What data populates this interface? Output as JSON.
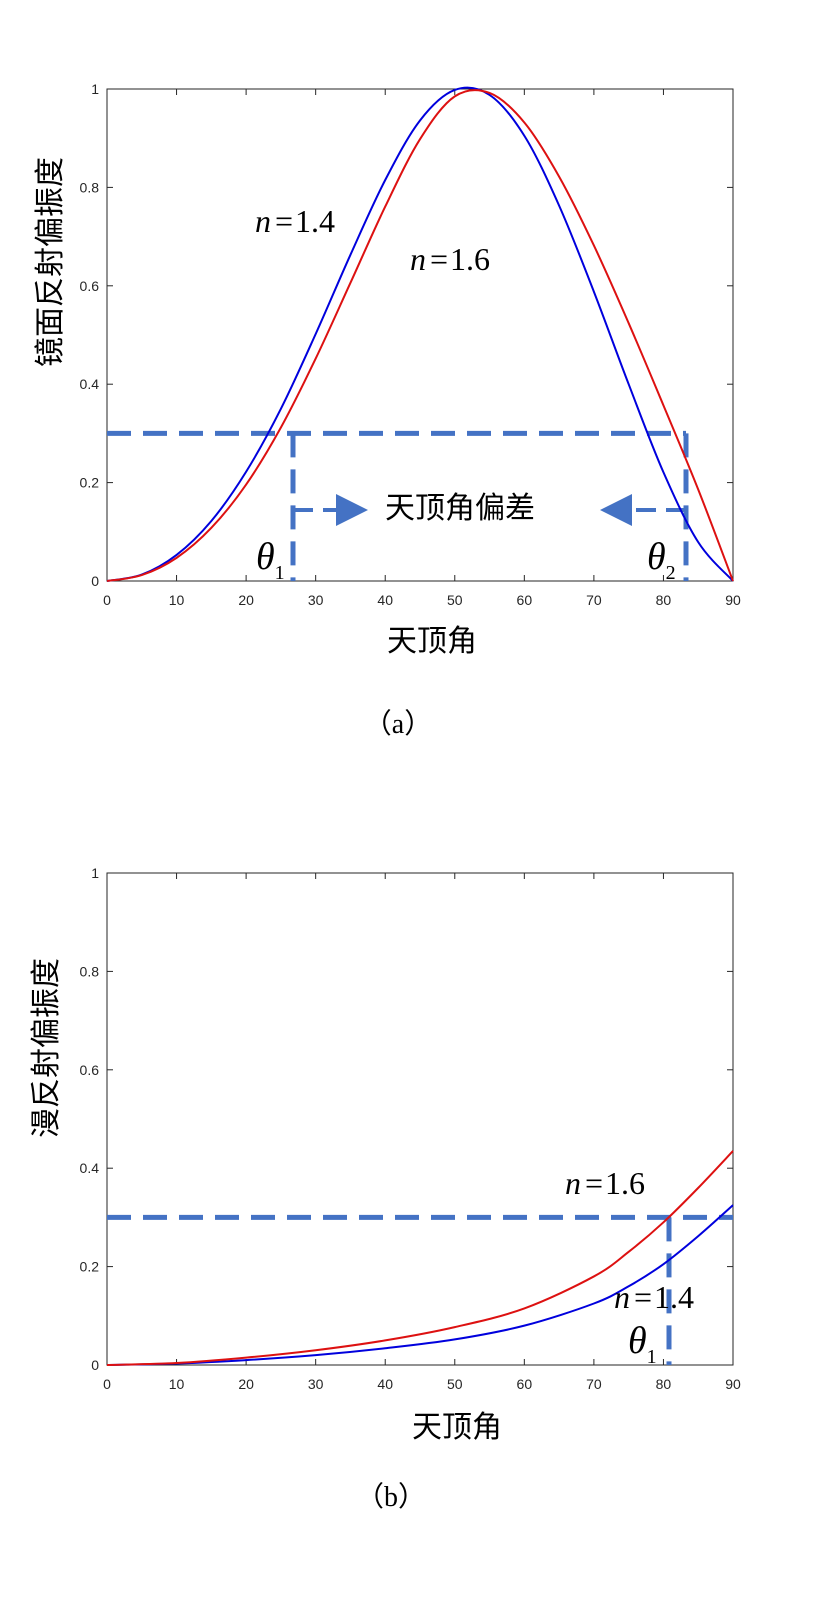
{
  "colors": {
    "blue": "#0000dd",
    "red": "#dd1111",
    "guide": "#4472c4"
  },
  "chart_data": [
    {
      "type": "line",
      "xlabel": "天顶角",
      "ylabel": "镜面反射偏振度",
      "caption": "（a）",
      "xlim": [
        0,
        90
      ],
      "ylim": [
        0,
        1
      ],
      "xticks": [
        "0",
        "10",
        "20",
        "30",
        "40",
        "50",
        "60",
        "70",
        "80",
        "90"
      ],
      "yticks": [
        "0",
        "0.2",
        "0.4",
        "0.6",
        "0.8",
        "1"
      ],
      "grid": false,
      "x": [
        0,
        5,
        10,
        15,
        20,
        25,
        30,
        35,
        40,
        45,
        50,
        55,
        60,
        65,
        70,
        75,
        80,
        85,
        90
      ],
      "series": [
        {
          "name": "n = 1.4",
          "color": "blue",
          "values": [
            0,
            0.013,
            0.053,
            0.122,
            0.222,
            0.35,
            0.502,
            0.663,
            0.815,
            0.936,
            0.998,
            0.988,
            0.905,
            0.763,
            0.588,
            0.4,
            0.221,
            0.079,
            0
          ]
        },
        {
          "name": "n = 1.6",
          "color": "red",
          "values": [
            0,
            0.012,
            0.047,
            0.108,
            0.196,
            0.312,
            0.452,
            0.606,
            0.761,
            0.898,
            0.985,
            0.992,
            0.932,
            0.822,
            0.682,
            0.524,
            0.357,
            0.186,
            0
          ]
        }
      ],
      "annotations": {
        "n14": {
          "n": "n",
          "eq": "=",
          "val": "1.4"
        },
        "n16": {
          "n": "n",
          "eq": "=",
          "val": "1.6"
        },
        "theta1": {
          "sym": "θ",
          "sub": "1"
        },
        "theta2": {
          "sym": "θ",
          "sub": "2"
        },
        "range_label": "天顶角偏差"
      },
      "guides": {
        "y": 0.3,
        "x1": 26.8,
        "x2": 83.5
      }
    },
    {
      "type": "line",
      "xlabel": "天顶角",
      "ylabel": "漫反射偏振度",
      "caption": "（b）",
      "xlim": [
        0,
        90
      ],
      "ylim": [
        0,
        1
      ],
      "xticks": [
        "0",
        "10",
        "20",
        "30",
        "40",
        "50",
        "60",
        "70",
        "80",
        "90"
      ],
      "yticks": [
        "0",
        "0.2",
        "0.4",
        "0.6",
        "0.8",
        "1"
      ],
      "grid": false,
      "x": [
        0,
        10,
        20,
        30,
        40,
        50,
        60,
        70,
        75,
        80,
        85,
        90
      ],
      "series": [
        {
          "name": "n = 1.4",
          "color": "blue",
          "values": [
            0,
            0.003,
            0.01,
            0.02,
            0.034,
            0.052,
            0.08,
            0.125,
            0.16,
            0.205,
            0.262,
            0.325
          ]
        },
        {
          "name": "n = 1.6",
          "color": "red",
          "values": [
            0,
            0.004,
            0.015,
            0.03,
            0.05,
            0.077,
            0.115,
            0.18,
            0.23,
            0.29,
            0.36,
            0.435
          ]
        }
      ],
      "annotations": {
        "n14": {
          "n": "n",
          "eq": "=",
          "val": "1.4"
        },
        "n16": {
          "n": "n",
          "eq": "=",
          "val": "1.6"
        },
        "theta1": {
          "sym": "θ",
          "sub": "1"
        }
      },
      "guides": {
        "y": 0.3,
        "x1": 81.2
      }
    }
  ]
}
